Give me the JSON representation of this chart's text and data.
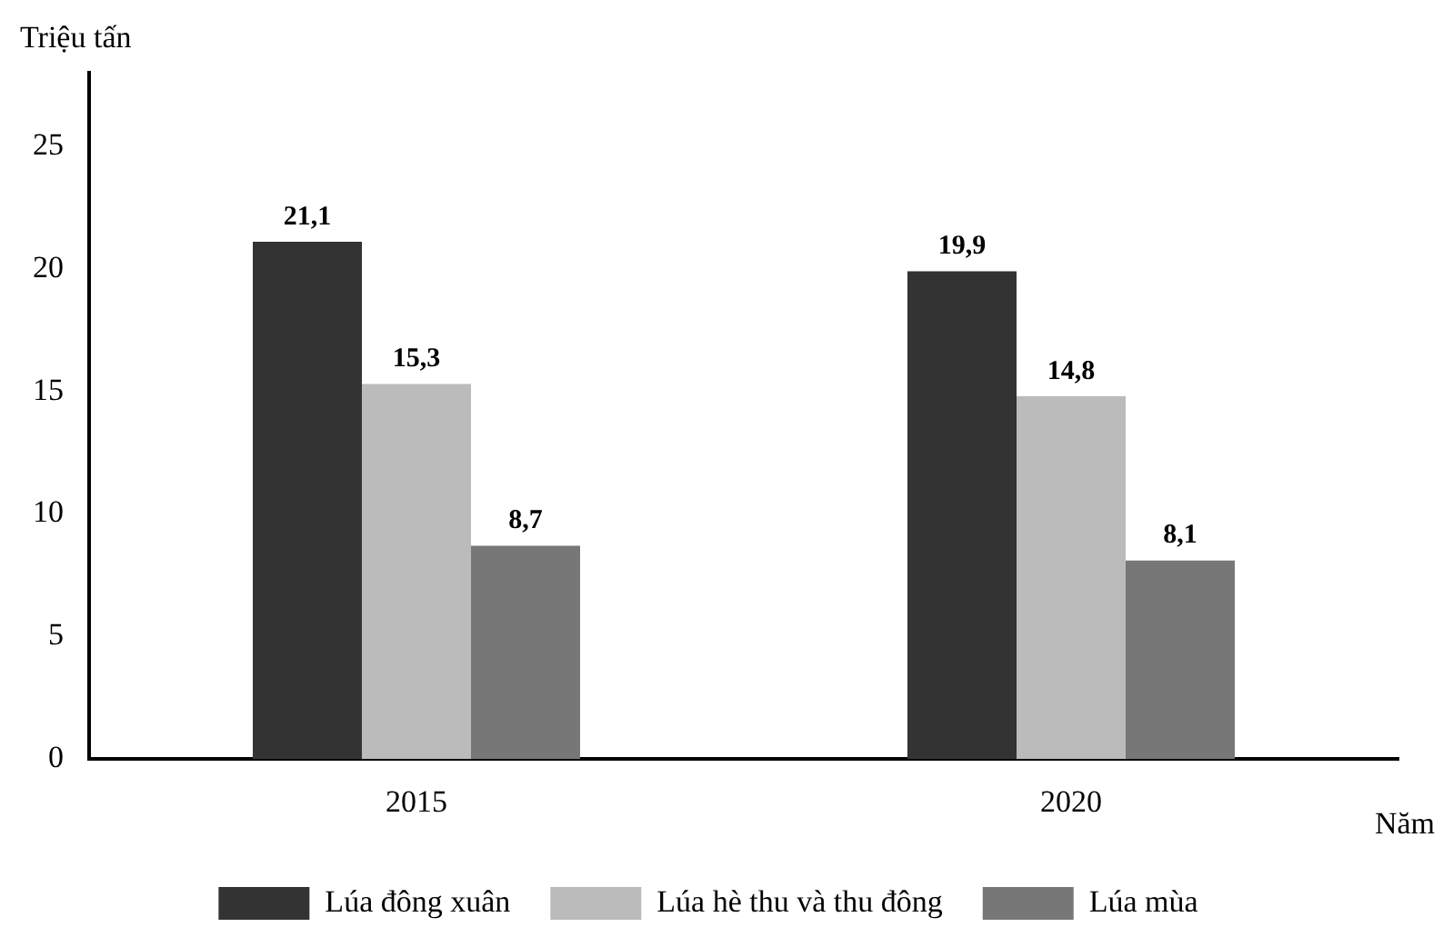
{
  "chart_data": {
    "type": "bar",
    "ylabel": "Triệu tấn",
    "xlabel": "Năm",
    "categories": [
      "2015",
      "2020"
    ],
    "series": [
      {
        "name": "Lúa đông xuân",
        "color": "#333333",
        "values": [
          21.1,
          19.9
        ],
        "value_labels": [
          "21,1",
          "19,9"
        ]
      },
      {
        "name": "Lúa hè thu và thu đông",
        "color": "#bbbbbb",
        "values": [
          15.3,
          14.8
        ],
        "value_labels": [
          "15,3",
          "14,8"
        ]
      },
      {
        "name": "Lúa mùa",
        "color": "#777777",
        "values": [
          8.7,
          8.1
        ],
        "value_labels": [
          "8,7",
          "8,1"
        ]
      }
    ],
    "ylim": [
      0,
      28
    ],
    "yticks": [
      0,
      5,
      10,
      15,
      20,
      25
    ],
    "grid": false,
    "legend": "bottom"
  }
}
